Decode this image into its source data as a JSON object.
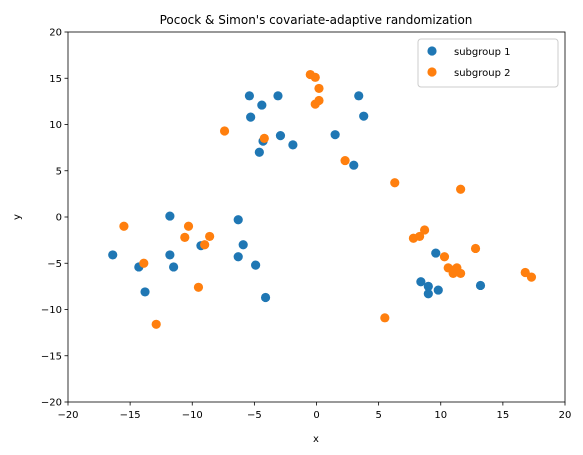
{
  "chart_data": {
    "type": "scatter",
    "title": "Pocock & Simon's covariate-adaptive randomization",
    "xlabel": "x",
    "ylabel": "y",
    "xlim": [
      -20,
      20
    ],
    "ylim": [
      -20,
      20
    ],
    "xticks": [
      -20,
      -15,
      -10,
      -5,
      0,
      5,
      10,
      15,
      20
    ],
    "yticks": [
      -20,
      -15,
      -10,
      -5,
      0,
      5,
      10,
      15,
      20
    ],
    "grid": false,
    "legend": "top-right",
    "series": [
      {
        "name": "subgroup 1",
        "color": "#1f77b4",
        "points": [
          [
            -16.4,
            -4.1
          ],
          [
            -14.3,
            -5.4
          ],
          [
            -13.8,
            -8.1
          ],
          [
            -11.8,
            0.1
          ],
          [
            -11.8,
            -4.1
          ],
          [
            -11.5,
            -5.4
          ],
          [
            -9.3,
            -3.1
          ],
          [
            -6.3,
            -0.3
          ],
          [
            -6.3,
            -4.3
          ],
          [
            -5.9,
            -3.0
          ],
          [
            -4.9,
            -5.2
          ],
          [
            -4.1,
            -8.7
          ],
          [
            -5.4,
            13.1
          ],
          [
            -5.3,
            10.8
          ],
          [
            -4.4,
            12.1
          ],
          [
            -3.1,
            13.1
          ],
          [
            -2.9,
            8.8
          ],
          [
            -4.3,
            8.2
          ],
          [
            -4.6,
            7.0
          ],
          [
            -1.9,
            7.8
          ],
          [
            1.5,
            8.9
          ],
          [
            3.0,
            5.6
          ],
          [
            3.4,
            13.1
          ],
          [
            3.8,
            10.9
          ],
          [
            8.4,
            -7.0
          ],
          [
            9.0,
            -7.5
          ],
          [
            9.0,
            -8.3
          ],
          [
            9.6,
            -3.9
          ],
          [
            9.8,
            -7.9
          ],
          [
            13.2,
            -7.4
          ]
        ]
      },
      {
        "name": "subgroup 2",
        "color": "#ff7f0e",
        "points": [
          [
            -15.5,
            -1.0
          ],
          [
            -13.9,
            -5.0
          ],
          [
            -12.9,
            -11.6
          ],
          [
            -10.6,
            -2.2
          ],
          [
            -10.3,
            -1.0
          ],
          [
            -9.5,
            -7.6
          ],
          [
            -9.0,
            -3.0
          ],
          [
            -8.6,
            -2.1
          ],
          [
            -7.4,
            9.3
          ],
          [
            -4.2,
            8.5
          ],
          [
            -0.5,
            15.4
          ],
          [
            -0.1,
            15.1
          ],
          [
            -0.1,
            12.2
          ],
          [
            0.2,
            12.6
          ],
          [
            0.2,
            13.9
          ],
          [
            2.3,
            6.1
          ],
          [
            5.5,
            -10.9
          ],
          [
            6.3,
            3.7
          ],
          [
            7.8,
            -2.3
          ],
          [
            8.3,
            -2.1
          ],
          [
            8.7,
            -1.4
          ],
          [
            10.3,
            -4.3
          ],
          [
            10.6,
            -5.5
          ],
          [
            11.0,
            -6.1
          ],
          [
            11.1,
            -5.7
          ],
          [
            11.3,
            -5.5
          ],
          [
            11.6,
            -6.1
          ],
          [
            11.6,
            3.0
          ],
          [
            12.8,
            -3.4
          ],
          [
            16.8,
            -6.0
          ],
          [
            17.3,
            -6.5
          ]
        ]
      }
    ]
  }
}
